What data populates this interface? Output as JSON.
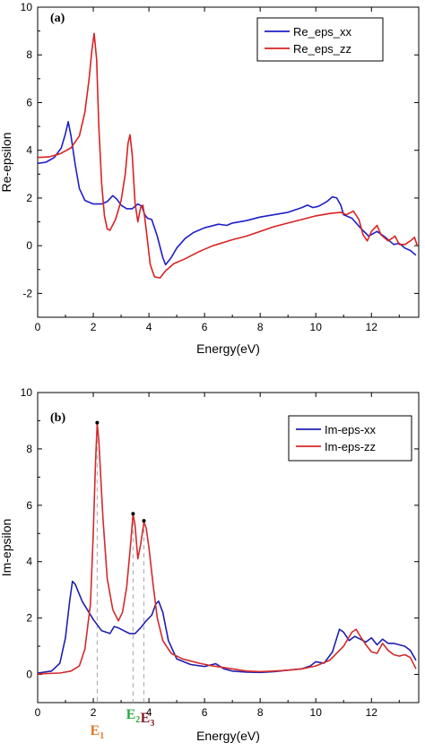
{
  "chart_data": [
    {
      "type": "line",
      "panel_label": "(a)",
      "xlabel": "Energy(eV)",
      "ylabel": "Re-epsilon",
      "xlim": [
        0,
        13.7
      ],
      "ylim": [
        -3,
        10
      ],
      "xticks": [
        0,
        2,
        4,
        6,
        8,
        10,
        12
      ],
      "yticks": [
        -2,
        0,
        2,
        4,
        6,
        8,
        10
      ],
      "legend_position": "top-right",
      "series": [
        {
          "name": "Re_eps_xx",
          "color": "#1f1fc8",
          "points": [
            [
              0,
              3.45
            ],
            [
              0.3,
              3.5
            ],
            [
              0.6,
              3.7
            ],
            [
              0.85,
              4.1
            ],
            [
              1.0,
              4.7
            ],
            [
              1.1,
              5.2
            ],
            [
              1.2,
              4.6
            ],
            [
              1.35,
              3.4
            ],
            [
              1.5,
              2.4
            ],
            [
              1.7,
              1.9
            ],
            [
              2.0,
              1.75
            ],
            [
              2.3,
              1.75
            ],
            [
              2.5,
              1.85
            ],
            [
              2.7,
              2.1
            ],
            [
              2.85,
              1.95
            ],
            [
              3.0,
              1.7
            ],
            [
              3.2,
              1.55
            ],
            [
              3.4,
              1.55
            ],
            [
              3.6,
              1.75
            ],
            [
              3.75,
              1.65
            ],
            [
              3.85,
              1.3
            ],
            [
              3.95,
              1.15
            ],
            [
              4.1,
              1.1
            ],
            [
              4.3,
              0.4
            ],
            [
              4.5,
              -0.5
            ],
            [
              4.6,
              -0.8
            ],
            [
              4.8,
              -0.5
            ],
            [
              5.0,
              -0.1
            ],
            [
              5.3,
              0.3
            ],
            [
              5.6,
              0.55
            ],
            [
              6.0,
              0.75
            ],
            [
              6.5,
              0.9
            ],
            [
              6.8,
              0.85
            ],
            [
              7.0,
              0.95
            ],
            [
              7.5,
              1.05
            ],
            [
              8.0,
              1.2
            ],
            [
              8.5,
              1.3
            ],
            [
              9.0,
              1.4
            ],
            [
              9.5,
              1.6
            ],
            [
              9.7,
              1.7
            ],
            [
              9.9,
              1.6
            ],
            [
              10.1,
              1.65
            ],
            [
              10.4,
              1.85
            ],
            [
              10.6,
              2.05
            ],
            [
              10.75,
              2.0
            ],
            [
              10.9,
              1.7
            ],
            [
              11.0,
              1.3
            ],
            [
              11.3,
              1.15
            ],
            [
              11.6,
              0.75
            ],
            [
              11.9,
              0.4
            ],
            [
              12.2,
              0.6
            ],
            [
              12.5,
              0.35
            ],
            [
              12.8,
              0.05
            ],
            [
              13.0,
              0.1
            ],
            [
              13.2,
              -0.1
            ],
            [
              13.4,
              -0.2
            ],
            [
              13.6,
              -0.4
            ]
          ]
        },
        {
          "name": "Re_eps_zz",
          "color": "#d92222",
          "points": [
            [
              0,
              3.7
            ],
            [
              0.4,
              3.72
            ],
            [
              0.8,
              3.85
            ],
            [
              1.2,
              4.1
            ],
            [
              1.5,
              4.6
            ],
            [
              1.7,
              5.6
            ],
            [
              1.85,
              7.0
            ],
            [
              1.95,
              8.2
            ],
            [
              2.03,
              8.9
            ],
            [
              2.12,
              7.8
            ],
            [
              2.2,
              5.0
            ],
            [
              2.3,
              2.6
            ],
            [
              2.4,
              1.25
            ],
            [
              2.5,
              0.7
            ],
            [
              2.6,
              0.65
            ],
            [
              2.8,
              1.1
            ],
            [
              3.0,
              1.9
            ],
            [
              3.15,
              3.0
            ],
            [
              3.25,
              4.3
            ],
            [
              3.32,
              4.65
            ],
            [
              3.4,
              3.8
            ],
            [
              3.5,
              1.8
            ],
            [
              3.6,
              1.0
            ],
            [
              3.7,
              1.6
            ],
            [
              3.78,
              1.7
            ],
            [
              3.85,
              1.2
            ],
            [
              3.95,
              0.2
            ],
            [
              4.05,
              -0.8
            ],
            [
              4.2,
              -1.3
            ],
            [
              4.4,
              -1.35
            ],
            [
              4.6,
              -1.05
            ],
            [
              4.9,
              -0.75
            ],
            [
              5.3,
              -0.55
            ],
            [
              5.8,
              -0.25
            ],
            [
              6.3,
              0.0
            ],
            [
              7.0,
              0.25
            ],
            [
              7.5,
              0.4
            ],
            [
              8.0,
              0.6
            ],
            [
              8.5,
              0.8
            ],
            [
              9.0,
              0.95
            ],
            [
              9.5,
              1.1
            ],
            [
              10.0,
              1.25
            ],
            [
              10.5,
              1.35
            ],
            [
              10.9,
              1.4
            ],
            [
              11.1,
              1.3
            ],
            [
              11.35,
              1.45
            ],
            [
              11.55,
              1.1
            ],
            [
              11.7,
              0.45
            ],
            [
              11.85,
              0.2
            ],
            [
              12.0,
              0.6
            ],
            [
              12.2,
              0.85
            ],
            [
              12.35,
              0.45
            ],
            [
              12.6,
              0.2
            ],
            [
              12.85,
              0.4
            ],
            [
              13.0,
              0.05
            ],
            [
              13.2,
              0.05
            ],
            [
              13.4,
              0.2
            ],
            [
              13.55,
              0.35
            ],
            [
              13.65,
              0.0
            ]
          ]
        }
      ]
    },
    {
      "type": "line",
      "panel_label": "(b)",
      "xlabel": "Energy(eV)",
      "ylabel": "Im-epsilon",
      "xlim": [
        0,
        13.7
      ],
      "ylim": [
        -1,
        10
      ],
      "xticks": [
        0,
        2,
        4,
        6,
        8,
        10,
        12
      ],
      "yticks": [
        0,
        2,
        4,
        6,
        8,
        10
      ],
      "legend_position": "top-right",
      "series": [
        {
          "name": "Im-eps-xx",
          "color": "#1f1fb0",
          "points": [
            [
              0,
              0.05
            ],
            [
              0.5,
              0.12
            ],
            [
              0.8,
              0.4
            ],
            [
              1.0,
              1.3
            ],
            [
              1.15,
              2.6
            ],
            [
              1.25,
              3.3
            ],
            [
              1.35,
              3.2
            ],
            [
              1.6,
              2.6
            ],
            [
              2.0,
              1.95
            ],
            [
              2.3,
              1.55
            ],
            [
              2.6,
              1.45
            ],
            [
              2.75,
              1.7
            ],
            [
              2.9,
              1.65
            ],
            [
              3.1,
              1.55
            ],
            [
              3.3,
              1.45
            ],
            [
              3.5,
              1.45
            ],
            [
              3.7,
              1.65
            ],
            [
              3.9,
              1.9
            ],
            [
              4.1,
              2.1
            ],
            [
              4.25,
              2.5
            ],
            [
              4.35,
              2.6
            ],
            [
              4.5,
              2.2
            ],
            [
              4.7,
              1.2
            ],
            [
              5.0,
              0.55
            ],
            [
              5.5,
              0.35
            ],
            [
              6.0,
              0.28
            ],
            [
              6.4,
              0.38
            ],
            [
              6.7,
              0.2
            ],
            [
              7.0,
              0.12
            ],
            [
              7.5,
              0.08
            ],
            [
              8.0,
              0.07
            ],
            [
              8.5,
              0.1
            ],
            [
              9.0,
              0.15
            ],
            [
              9.5,
              0.2
            ],
            [
              9.8,
              0.3
            ],
            [
              10.0,
              0.45
            ],
            [
              10.3,
              0.4
            ],
            [
              10.6,
              0.8
            ],
            [
              10.85,
              1.6
            ],
            [
              11.0,
              1.5
            ],
            [
              11.2,
              1.2
            ],
            [
              11.4,
              1.35
            ],
            [
              11.6,
              1.25
            ],
            [
              11.8,
              1.15
            ],
            [
              12.0,
              1.3
            ],
            [
              12.2,
              1.05
            ],
            [
              12.4,
              1.25
            ],
            [
              12.6,
              1.1
            ],
            [
              12.8,
              1.1
            ],
            [
              13.0,
              1.05
            ],
            [
              13.2,
              1.0
            ],
            [
              13.4,
              0.85
            ],
            [
              13.6,
              0.5
            ]
          ]
        },
        {
          "name": "Im-eps-zz",
          "color": "#d42a2a",
          "points": [
            [
              0,
              0.02
            ],
            [
              0.8,
              0.05
            ],
            [
              1.2,
              0.12
            ],
            [
              1.5,
              0.3
            ],
            [
              1.7,
              0.9
            ],
            [
              1.9,
              2.5
            ],
            [
              2.0,
              5.0
            ],
            [
              2.08,
              7.5
            ],
            [
              2.14,
              8.9
            ],
            [
              2.2,
              8.3
            ],
            [
              2.35,
              5.5
            ],
            [
              2.5,
              3.4
            ],
            [
              2.7,
              2.3
            ],
            [
              2.9,
              1.9
            ],
            [
              3.05,
              2.2
            ],
            [
              3.2,
              3.1
            ],
            [
              3.35,
              4.7
            ],
            [
              3.43,
              5.7
            ],
            [
              3.5,
              5.3
            ],
            [
              3.6,
              4.1
            ],
            [
              3.7,
              4.6
            ],
            [
              3.82,
              5.4
            ],
            [
              3.9,
              5.2
            ],
            [
              4.0,
              4.5
            ],
            [
              4.15,
              3.2
            ],
            [
              4.3,
              2.0
            ],
            [
              4.5,
              1.2
            ],
            [
              4.8,
              0.75
            ],
            [
              5.2,
              0.55
            ],
            [
              5.8,
              0.4
            ],
            [
              6.3,
              0.3
            ],
            [
              7.0,
              0.2
            ],
            [
              7.5,
              0.12
            ],
            [
              8.0,
              0.1
            ],
            [
              8.5,
              0.12
            ],
            [
              9.0,
              0.15
            ],
            [
              9.5,
              0.2
            ],
            [
              10.0,
              0.3
            ],
            [
              10.5,
              0.5
            ],
            [
              10.8,
              0.8
            ],
            [
              11.0,
              1.0
            ],
            [
              11.3,
              1.5
            ],
            [
              11.45,
              1.6
            ],
            [
              11.6,
              1.35
            ],
            [
              11.8,
              1.05
            ],
            [
              12.0,
              0.8
            ],
            [
              12.2,
              0.75
            ],
            [
              12.4,
              1.1
            ],
            [
              12.6,
              0.85
            ],
            [
              12.8,
              0.7
            ],
            [
              13.0,
              0.65
            ],
            [
              13.2,
              0.7
            ],
            [
              13.4,
              0.6
            ],
            [
              13.6,
              0.2
            ]
          ]
        }
      ],
      "peak_markers": [
        {
          "x": 2.14,
          "y": 8.93,
          "label": "E",
          "sub": "1",
          "color": "#e0782a"
        },
        {
          "x": 3.43,
          "y": 5.7,
          "label": "E",
          "sub": "2",
          "color": "#2aa83c"
        },
        {
          "x": 3.82,
          "y": 5.45,
          "label": "E",
          "sub": "3",
          "color": "#8a1c2c"
        }
      ]
    }
  ]
}
